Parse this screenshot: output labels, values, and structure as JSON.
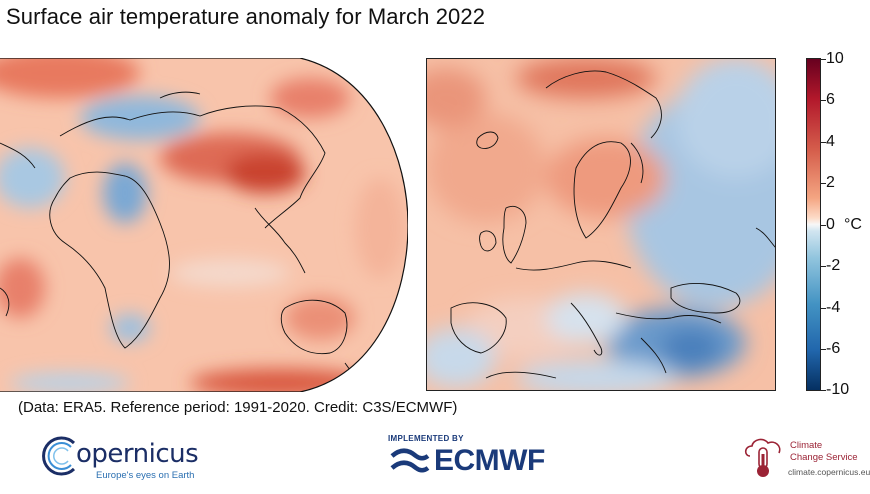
{
  "header": {
    "title": "Surface air temperature anomaly for March 2022"
  },
  "colorbar": {
    "unit": "°C",
    "ticks": [
      "10",
      "6",
      "4",
      "2",
      "0",
      "-2",
      "-4",
      "-6",
      "-10"
    ],
    "colors": {
      "warm_extreme": "#67001f",
      "warm": "#d6604d",
      "neutral": "#f7f7f7",
      "cool": "#4393c3",
      "cool_extreme": "#053061"
    }
  },
  "footer": {
    "credit": "(Data: ERA5.  Reference period: 1991-2020.  Credit: C3S/ECMWF)"
  },
  "logos": {
    "copernicus": {
      "word": "opernicus",
      "tagline": "Europe's eyes on Earth"
    },
    "ecmwf": {
      "implemented_by": "IMPLEMENTED BY",
      "word": "ECMWF"
    },
    "c3s": {
      "line1": "Climate",
      "line2": "Change Service",
      "url": "climate.copernicus.eu"
    }
  }
}
